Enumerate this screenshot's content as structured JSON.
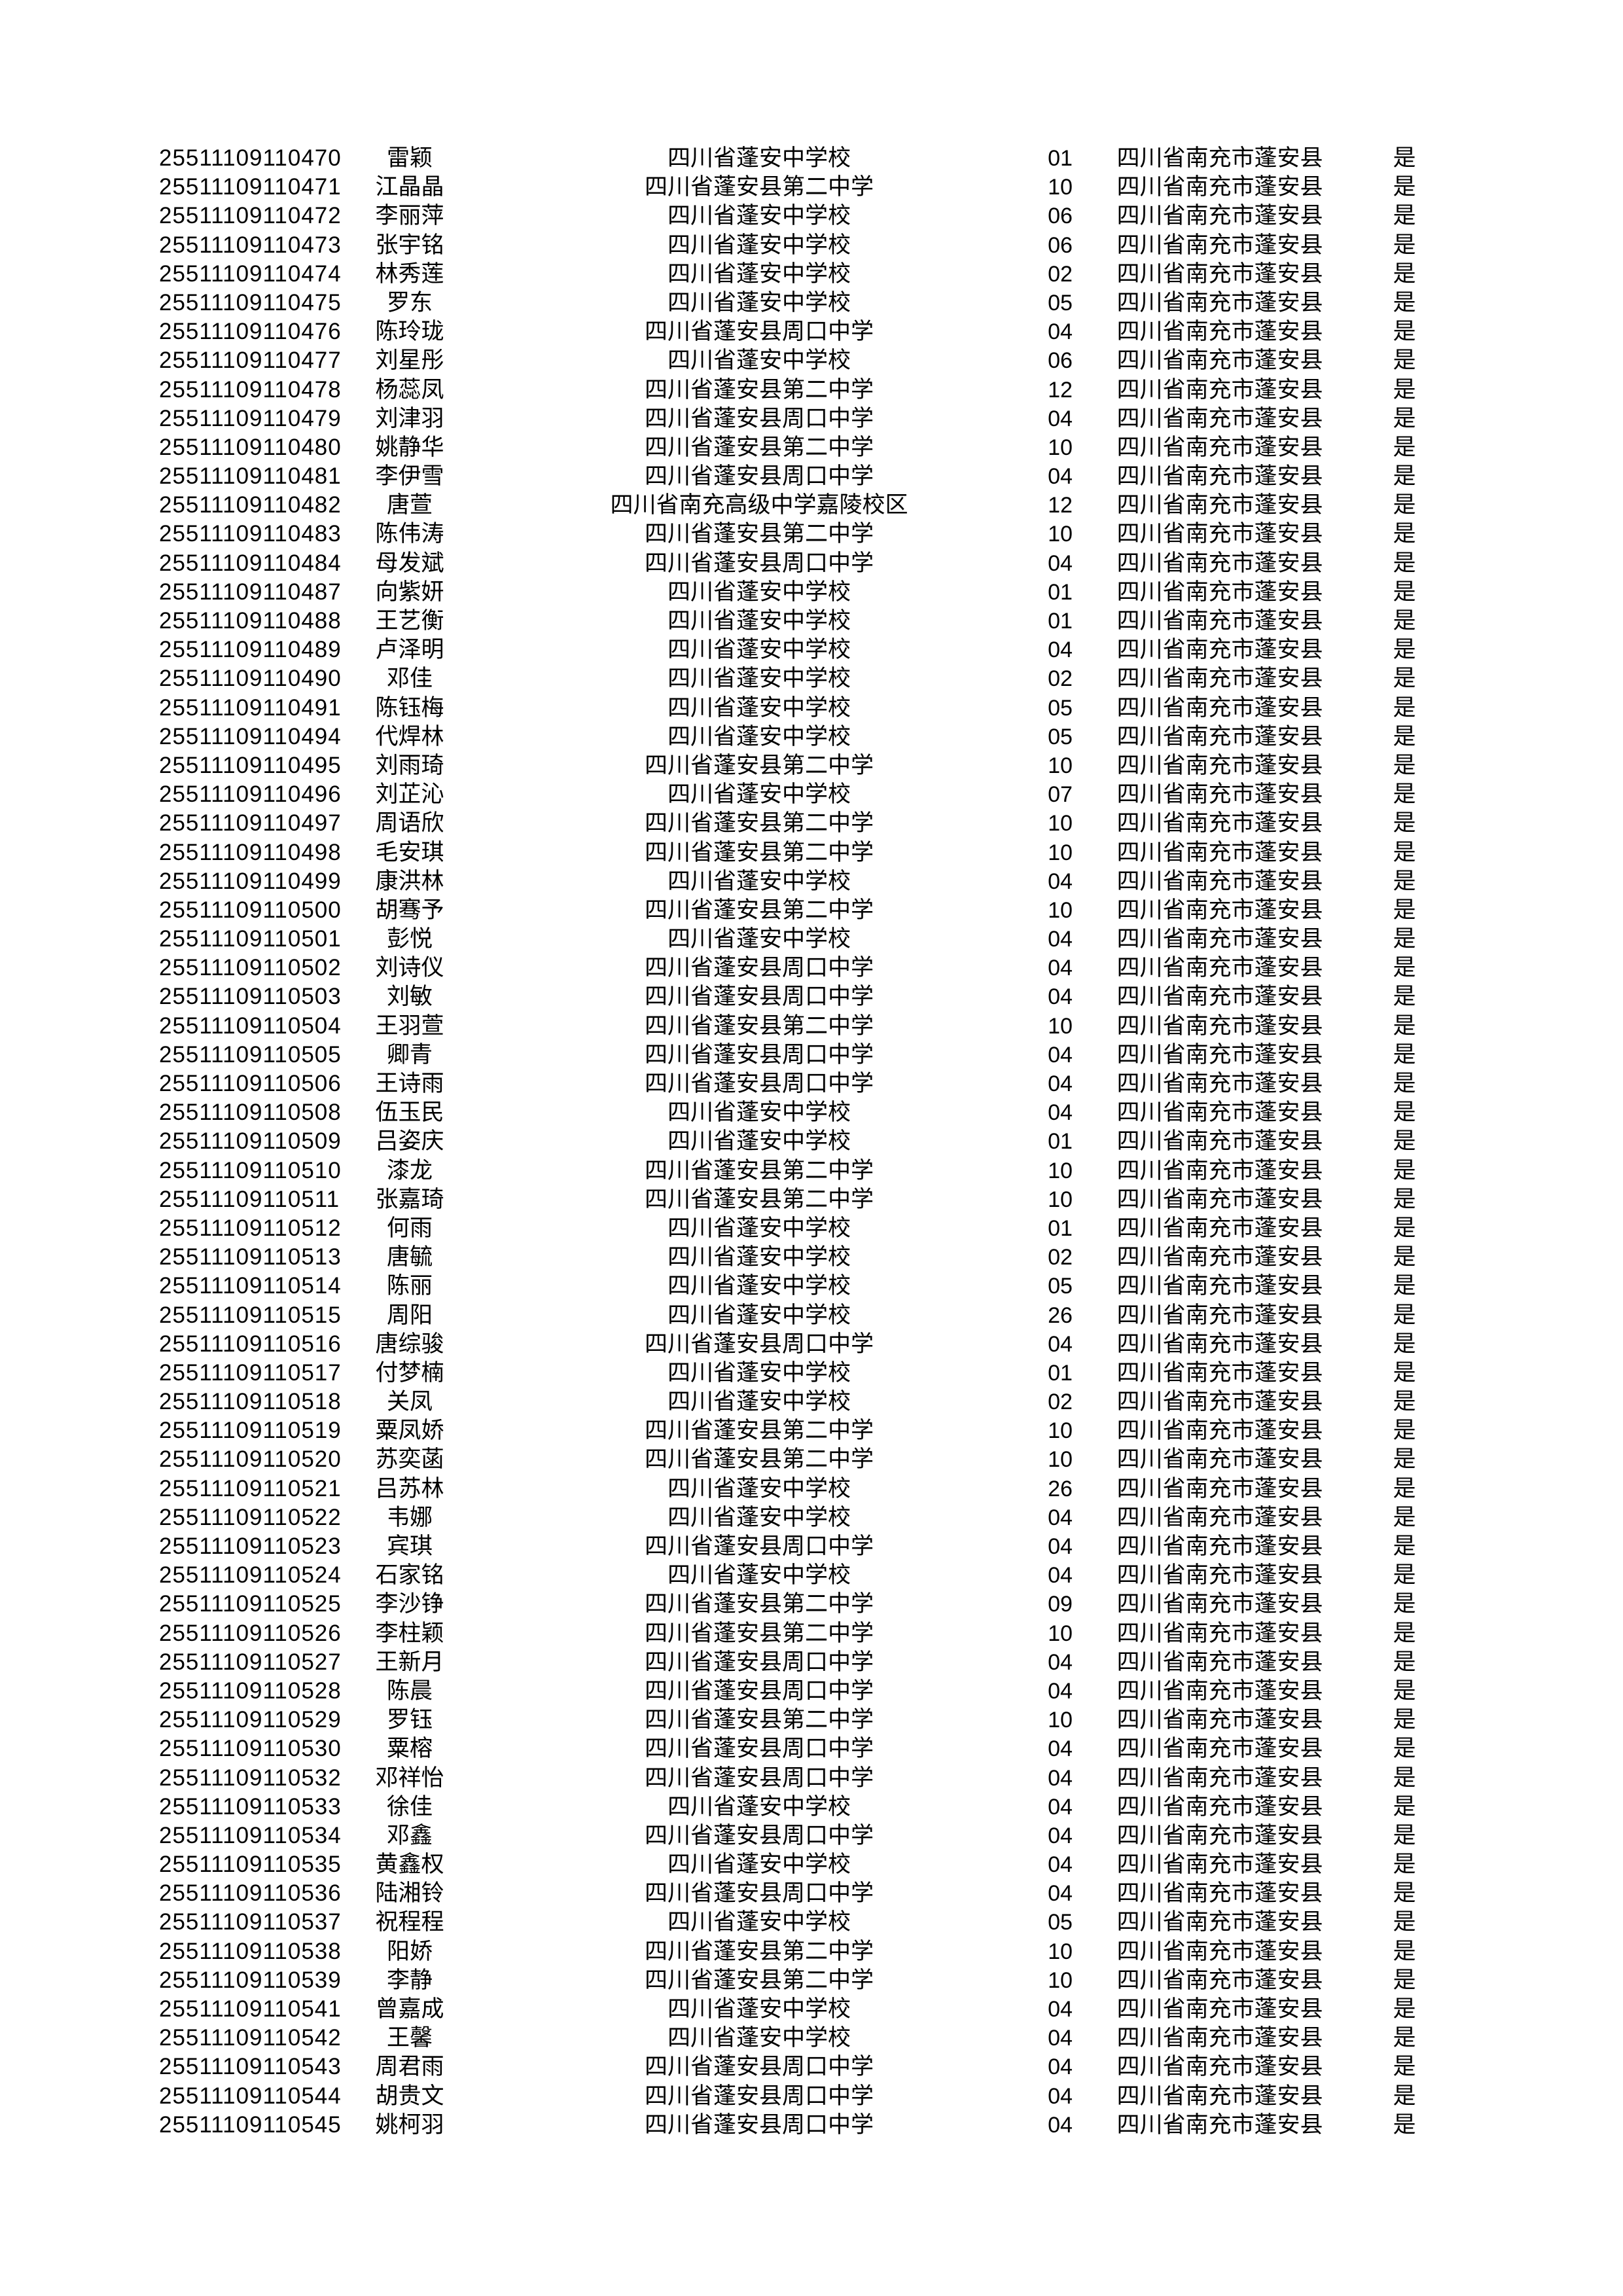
{
  "page": {
    "background": "#ffffff",
    "text_color": "#000000"
  },
  "table": {
    "columns": [
      {
        "key": "candidate-id"
      },
      {
        "key": "name"
      },
      {
        "key": "school"
      },
      {
        "key": "class-code"
      },
      {
        "key": "county"
      },
      {
        "key": "confirmed"
      }
    ],
    "school_names": [
      "四川省蓬安中学校",
      "四川省蓬安县第二中学",
      "四川省蓬安县周口中学",
      "四川省南充高级中学嘉陵校区"
    ],
    "county_value": "四川省南充市蓬安县",
    "confirmed_value": "是",
    "rows": [
      [
        "25511109110470",
        "雷颖",
        "四川省蓬安中学校",
        "01",
        "四川省南充市蓬安县",
        "是"
      ],
      [
        "25511109110471",
        "江晶晶",
        "四川省蓬安县第二中学",
        "10",
        "四川省南充市蓬安县",
        "是"
      ],
      [
        "25511109110472",
        "李丽萍",
        "四川省蓬安中学校",
        "06",
        "四川省南充市蓬安县",
        "是"
      ],
      [
        "25511109110473",
        "张宇铭",
        "四川省蓬安中学校",
        "06",
        "四川省南充市蓬安县",
        "是"
      ],
      [
        "25511109110474",
        "林秀莲",
        "四川省蓬安中学校",
        "02",
        "四川省南充市蓬安县",
        "是"
      ],
      [
        "25511109110475",
        "罗东",
        "四川省蓬安中学校",
        "05",
        "四川省南充市蓬安县",
        "是"
      ],
      [
        "25511109110476",
        "陈玲珑",
        "四川省蓬安县周口中学",
        "04",
        "四川省南充市蓬安县",
        "是"
      ],
      [
        "25511109110477",
        "刘星彤",
        "四川省蓬安中学校",
        "06",
        "四川省南充市蓬安县",
        "是"
      ],
      [
        "25511109110478",
        "杨蕊凤",
        "四川省蓬安县第二中学",
        "12",
        "四川省南充市蓬安县",
        "是"
      ],
      [
        "25511109110479",
        "刘津羽",
        "四川省蓬安县周口中学",
        "04",
        "四川省南充市蓬安县",
        "是"
      ],
      [
        "25511109110480",
        "姚静华",
        "四川省蓬安县第二中学",
        "10",
        "四川省南充市蓬安县",
        "是"
      ],
      [
        "25511109110481",
        "李伊雪",
        "四川省蓬安县周口中学",
        "04",
        "四川省南充市蓬安县",
        "是"
      ],
      [
        "25511109110482",
        "唐萱",
        "四川省南充高级中学嘉陵校区",
        "12",
        "四川省南充市蓬安县",
        "是"
      ],
      [
        "25511109110483",
        "陈伟涛",
        "四川省蓬安县第二中学",
        "10",
        "四川省南充市蓬安县",
        "是"
      ],
      [
        "25511109110484",
        "母发斌",
        "四川省蓬安县周口中学",
        "04",
        "四川省南充市蓬安县",
        "是"
      ],
      [
        "25511109110487",
        "向紫妍",
        "四川省蓬安中学校",
        "01",
        "四川省南充市蓬安县",
        "是"
      ],
      [
        "25511109110488",
        "王艺衡",
        "四川省蓬安中学校",
        "01",
        "四川省南充市蓬安县",
        "是"
      ],
      [
        "25511109110489",
        "卢泽明",
        "四川省蓬安中学校",
        "04",
        "四川省南充市蓬安县",
        "是"
      ],
      [
        "25511109110490",
        "邓佳",
        "四川省蓬安中学校",
        "02",
        "四川省南充市蓬安县",
        "是"
      ],
      [
        "25511109110491",
        "陈钰梅",
        "四川省蓬安中学校",
        "05",
        "四川省南充市蓬安县",
        "是"
      ],
      [
        "25511109110494",
        "代焊林",
        "四川省蓬安中学校",
        "05",
        "四川省南充市蓬安县",
        "是"
      ],
      [
        "25511109110495",
        "刘雨琦",
        "四川省蓬安县第二中学",
        "10",
        "四川省南充市蓬安县",
        "是"
      ],
      [
        "25511109110496",
        "刘芷沁",
        "四川省蓬安中学校",
        "07",
        "四川省南充市蓬安县",
        "是"
      ],
      [
        "25511109110497",
        "周语欣",
        "四川省蓬安县第二中学",
        "10",
        "四川省南充市蓬安县",
        "是"
      ],
      [
        "25511109110498",
        "毛安琪",
        "四川省蓬安县第二中学",
        "10",
        "四川省南充市蓬安县",
        "是"
      ],
      [
        "25511109110499",
        "康洪林",
        "四川省蓬安中学校",
        "04",
        "四川省南充市蓬安县",
        "是"
      ],
      [
        "25511109110500",
        "胡骞予",
        "四川省蓬安县第二中学",
        "10",
        "四川省南充市蓬安县",
        "是"
      ],
      [
        "25511109110501",
        "彭悦",
        "四川省蓬安中学校",
        "04",
        "四川省南充市蓬安县",
        "是"
      ],
      [
        "25511109110502",
        "刘诗仪",
        "四川省蓬安县周口中学",
        "04",
        "四川省南充市蓬安县",
        "是"
      ],
      [
        "25511109110503",
        "刘敏",
        "四川省蓬安县周口中学",
        "04",
        "四川省南充市蓬安县",
        "是"
      ],
      [
        "25511109110504",
        "王羽萱",
        "四川省蓬安县第二中学",
        "10",
        "四川省南充市蓬安县",
        "是"
      ],
      [
        "25511109110505",
        "卿青",
        "四川省蓬安县周口中学",
        "04",
        "四川省南充市蓬安县",
        "是"
      ],
      [
        "25511109110506",
        "王诗雨",
        "四川省蓬安县周口中学",
        "04",
        "四川省南充市蓬安县",
        "是"
      ],
      [
        "25511109110508",
        "伍玉民",
        "四川省蓬安中学校",
        "04",
        "四川省南充市蓬安县",
        "是"
      ],
      [
        "25511109110509",
        "吕姿庆",
        "四川省蓬安中学校",
        "01",
        "四川省南充市蓬安县",
        "是"
      ],
      [
        "25511109110510",
        "漆龙",
        "四川省蓬安县第二中学",
        "10",
        "四川省南充市蓬安县",
        "是"
      ],
      [
        "25511109110511",
        "张嘉琦",
        "四川省蓬安县第二中学",
        "10",
        "四川省南充市蓬安县",
        "是"
      ],
      [
        "25511109110512",
        "何雨",
        "四川省蓬安中学校",
        "01",
        "四川省南充市蓬安县",
        "是"
      ],
      [
        "25511109110513",
        "唐毓",
        "四川省蓬安中学校",
        "02",
        "四川省南充市蓬安县",
        "是"
      ],
      [
        "25511109110514",
        "陈丽",
        "四川省蓬安中学校",
        "05",
        "四川省南充市蓬安县",
        "是"
      ],
      [
        "25511109110515",
        "周阳",
        "四川省蓬安中学校",
        "26",
        "四川省南充市蓬安县",
        "是"
      ],
      [
        "25511109110516",
        "唐综骏",
        "四川省蓬安县周口中学",
        "04",
        "四川省南充市蓬安县",
        "是"
      ],
      [
        "25511109110517",
        "付梦楠",
        "四川省蓬安中学校",
        "01",
        "四川省南充市蓬安县",
        "是"
      ],
      [
        "25511109110518",
        "关凤",
        "四川省蓬安中学校",
        "02",
        "四川省南充市蓬安县",
        "是"
      ],
      [
        "25511109110519",
        "粟凤娇",
        "四川省蓬安县第二中学",
        "10",
        "四川省南充市蓬安县",
        "是"
      ],
      [
        "25511109110520",
        "苏奕菡",
        "四川省蓬安县第二中学",
        "10",
        "四川省南充市蓬安县",
        "是"
      ],
      [
        "25511109110521",
        "吕苏林",
        "四川省蓬安中学校",
        "26",
        "四川省南充市蓬安县",
        "是"
      ],
      [
        "25511109110522",
        "韦娜",
        "四川省蓬安中学校",
        "04",
        "四川省南充市蓬安县",
        "是"
      ],
      [
        "25511109110523",
        "宾琪",
        "四川省蓬安县周口中学",
        "04",
        "四川省南充市蓬安县",
        "是"
      ],
      [
        "25511109110524",
        "石家铭",
        "四川省蓬安中学校",
        "04",
        "四川省南充市蓬安县",
        "是"
      ],
      [
        "25511109110525",
        "李沙铮",
        "四川省蓬安县第二中学",
        "09",
        "四川省南充市蓬安县",
        "是"
      ],
      [
        "25511109110526",
        "李柱颖",
        "四川省蓬安县第二中学",
        "10",
        "四川省南充市蓬安县",
        "是"
      ],
      [
        "25511109110527",
        "王新月",
        "四川省蓬安县周口中学",
        "04",
        "四川省南充市蓬安县",
        "是"
      ],
      [
        "25511109110528",
        "陈晨",
        "四川省蓬安县周口中学",
        "04",
        "四川省南充市蓬安县",
        "是"
      ],
      [
        "25511109110529",
        "罗钰",
        "四川省蓬安县第二中学",
        "10",
        "四川省南充市蓬安县",
        "是"
      ],
      [
        "25511109110530",
        "粟榕",
        "四川省蓬安县周口中学",
        "04",
        "四川省南充市蓬安县",
        "是"
      ],
      [
        "25511109110532",
        "邓祥怡",
        "四川省蓬安县周口中学",
        "04",
        "四川省南充市蓬安县",
        "是"
      ],
      [
        "25511109110533",
        "徐佳",
        "四川省蓬安中学校",
        "04",
        "四川省南充市蓬安县",
        "是"
      ],
      [
        "25511109110534",
        "邓鑫",
        "四川省蓬安县周口中学",
        "04",
        "四川省南充市蓬安县",
        "是"
      ],
      [
        "25511109110535",
        "黄鑫权",
        "四川省蓬安中学校",
        "04",
        "四川省南充市蓬安县",
        "是"
      ],
      [
        "25511109110536",
        "陆湘铃",
        "四川省蓬安县周口中学",
        "04",
        "四川省南充市蓬安县",
        "是"
      ],
      [
        "25511109110537",
        "祝程程",
        "四川省蓬安中学校",
        "05",
        "四川省南充市蓬安县",
        "是"
      ],
      [
        "25511109110538",
        "阳娇",
        "四川省蓬安县第二中学",
        "10",
        "四川省南充市蓬安县",
        "是"
      ],
      [
        "25511109110539",
        "李静",
        "四川省蓬安县第二中学",
        "10",
        "四川省南充市蓬安县",
        "是"
      ],
      [
        "25511109110541",
        "曾嘉成",
        "四川省蓬安中学校",
        "04",
        "四川省南充市蓬安县",
        "是"
      ],
      [
        "25511109110542",
        "王馨",
        "四川省蓬安中学校",
        "04",
        "四川省南充市蓬安县",
        "是"
      ],
      [
        "25511109110543",
        "周君雨",
        "四川省蓬安县周口中学",
        "04",
        "四川省南充市蓬安县",
        "是"
      ],
      [
        "25511109110544",
        "胡贵文",
        "四川省蓬安县周口中学",
        "04",
        "四川省南充市蓬安县",
        "是"
      ],
      [
        "25511109110545",
        "姚柯羽",
        "四川省蓬安县周口中学",
        "04",
        "四川省南充市蓬安县",
        "是"
      ]
    ]
  }
}
